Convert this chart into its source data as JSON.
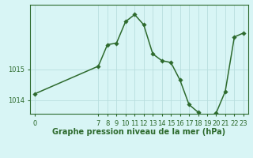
{
  "xlabel": "Graphe pression niveau de la mer (hPa)",
  "x_values": [
    0,
    7,
    8,
    9,
    10,
    11,
    12,
    13,
    14,
    15,
    16,
    17,
    18,
    19,
    20,
    21,
    22,
    23
  ],
  "y_values": [
    1014.2,
    1015.1,
    1015.8,
    1015.85,
    1016.55,
    1016.78,
    1016.45,
    1015.5,
    1015.28,
    1015.22,
    1014.65,
    1013.85,
    1013.6,
    1013.38,
    1013.58,
    1014.28,
    1016.05,
    1016.18
  ],
  "line_color": "#2d6a2d",
  "marker_color": "#2d6a2d",
  "bg_color": "#d8f5f5",
  "grid_color": "#b8dede",
  "label_color": "#2d6a2d",
  "ylim": [
    1013.55,
    1017.1
  ],
  "yticks": [
    1014.0,
    1015.0
  ],
  "xlim": [
    -0.5,
    23.5
  ],
  "x_tick_positions": [
    0,
    7,
    8,
    9,
    10,
    11,
    12,
    13,
    14,
    15,
    16,
    17,
    18,
    19,
    20,
    21,
    22,
    23
  ],
  "xtick_labels": [
    "0",
    "7",
    "8",
    "9",
    "10",
    "11",
    "12",
    "13",
    "14",
    "15",
    "16",
    "17",
    "18",
    "19",
    "20",
    "21",
    "22",
    "23"
  ],
  "xlabel_fontsize": 7.0,
  "tick_fontsize": 6.0,
  "linewidth": 1.1,
  "markersize": 2.8
}
